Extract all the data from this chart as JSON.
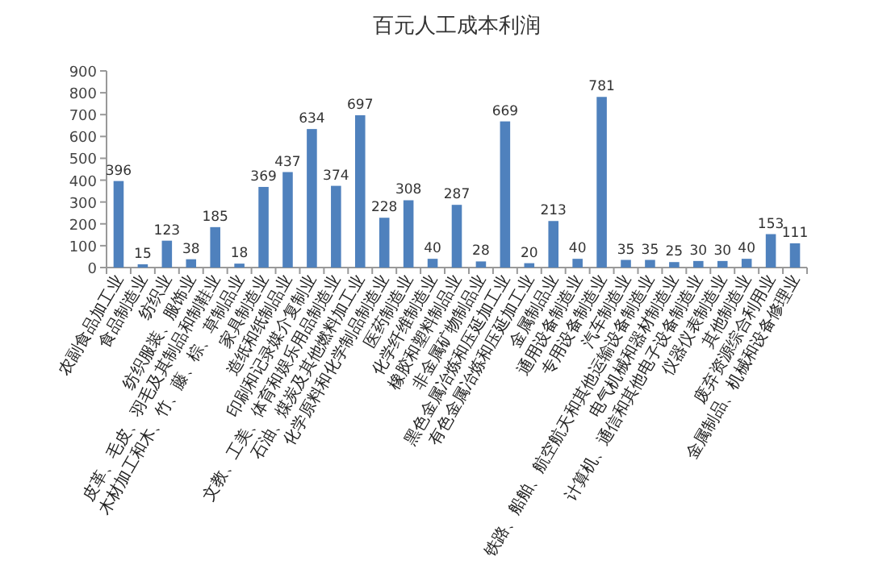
{
  "chart_data": {
    "type": "bar",
    "title": "百元人工成本利润",
    "categories": [
      "农副食品加工业",
      "食品制造业",
      "纺织业",
      "纺织服装、服饰业",
      "皮革、毛皮、羽毛及其制品和制鞋业",
      "木材加工和木、竹、藤、棕、草制品业",
      "家具制造业",
      "造纸和纸制品业",
      "印刷和记录媒介复制业",
      "文教、工美、体育和娱乐用品制造业",
      "石油、煤炭及其他燃料加工业",
      "化学原料和化学制品制造业",
      "医药制造业",
      "化学纤维制造业",
      "橡胶和塑料制品业",
      "非金属矿物制品业",
      "黑色金属冶炼和压延加工业",
      "有色金属冶炼和压延加工业",
      "金属制品业",
      "通用设备制造业",
      "专用设备制造业",
      "汽车制造业",
      "铁路、船舶、航空航天和其他运输设备制造业",
      "电气机械和器材制造业",
      "计算机、通信和其他电子设备制造业",
      "仪器仪表制造业",
      "其他制造业",
      "废弃资源综合利用业",
      "金属制品、机械和设备修理业"
    ],
    "values": [
      396,
      15,
      123,
      38,
      185,
      18,
      369,
      437,
      634,
      374,
      697,
      228,
      308,
      40,
      287,
      28,
      669,
      20,
      213,
      40,
      781,
      35,
      35,
      25,
      30,
      30,
      40,
      153,
      111
    ],
    "color": "#4f81bd",
    "ylim": [
      0,
      900
    ],
    "yticks": [
      0,
      100,
      200,
      300,
      400,
      500,
      600,
      700,
      800,
      900
    ],
    "data_labels": true,
    "grid": false
  }
}
